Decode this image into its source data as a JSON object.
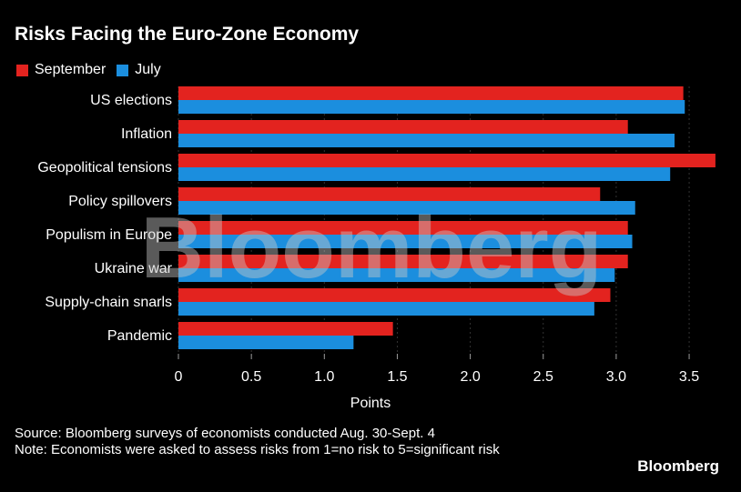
{
  "chart_data": {
    "type": "bar",
    "orientation": "horizontal",
    "title": "Risks Facing the Euro-Zone Economy",
    "categories": [
      "US elections",
      "Inflation",
      "Geopolitical tensions",
      "Policy spillovers",
      "Populism in Europe",
      "Ukraine war",
      "Supply-chain snarls",
      "Pandemic"
    ],
    "series": [
      {
        "name": "September",
        "color": "#e3231f",
        "values": [
          3.46,
          3.08,
          3.68,
          2.89,
          3.08,
          3.08,
          2.96,
          1.47
        ]
      },
      {
        "name": "July",
        "color": "#1b8ede",
        "values": [
          3.47,
          3.4,
          3.37,
          3.13,
          3.11,
          2.99,
          2.85,
          1.2
        ]
      }
    ],
    "xlabel": "Points",
    "xlim": [
      0,
      3.75
    ],
    "xticks": [
      "0",
      "0.5",
      "1.0",
      "1.5",
      "2.0",
      "2.5",
      "3.0",
      "3.5"
    ],
    "tick_values": [
      0,
      0.5,
      1,
      1.5,
      2,
      2.5,
      3,
      3.5
    ],
    "grid": true,
    "legend": "top-left"
  },
  "footer": {
    "source": "Source: Bloomberg surveys of economists conducted Aug. 30-Sept. 4",
    "note": "Note: Economists were asked to assess risks from 1=no risk to 5=significant risk",
    "brand": "Bloomberg"
  },
  "watermark": "Bloomberg"
}
